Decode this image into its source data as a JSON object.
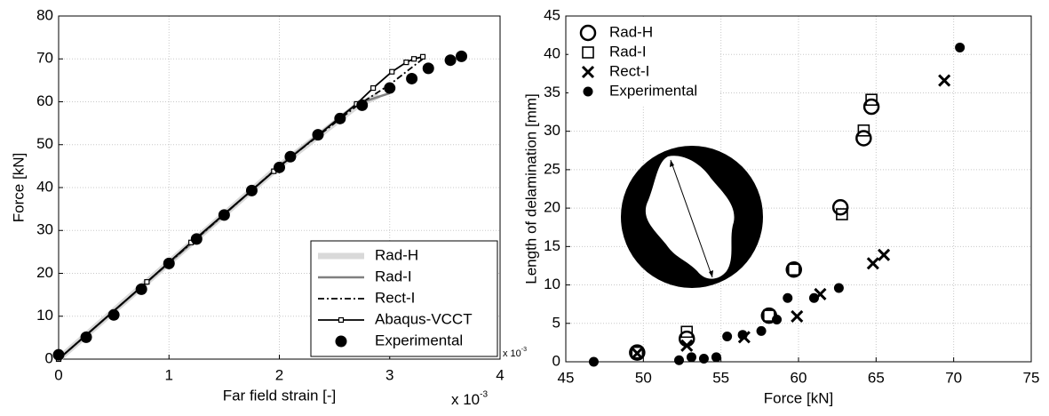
{
  "chart_data": [
    {
      "type": "line",
      "xlabel": "Far field strain [-]",
      "ylabel": "Force [kN]",
      "x_multiplier": {
        "base": "x 10",
        "power": "-3"
      },
      "xlim": [
        0,
        4
      ],
      "xticks": [
        0,
        1,
        2,
        3,
        4
      ],
      "ylim": [
        0,
        80
      ],
      "yticks": [
        0,
        10,
        20,
        30,
        40,
        50,
        60,
        70,
        80
      ],
      "grid": true,
      "legend": "lower right",
      "series": [
        {
          "name": "Rad-H",
          "color": "#d9d9d9",
          "style": "thick",
          "marker": "none",
          "x": [
            0,
            1,
            2,
            2.7,
            2.9
          ],
          "values": [
            0,
            22.5,
            45,
            59,
            61.5
          ]
        },
        {
          "name": "Rad-I",
          "color": "#808080",
          "style": "solid",
          "marker": "none",
          "x": [
            0,
            1,
            2,
            2.7,
            3.0
          ],
          "values": [
            0,
            22.4,
            45,
            59.5,
            62
          ]
        },
        {
          "name": "Rect-I",
          "color": "#000000",
          "style": "dashdot",
          "marker": "none",
          "x": [
            0,
            1,
            2,
            2.7,
            3.0,
            3.3
          ],
          "values": [
            0,
            22.5,
            45,
            59,
            64,
            70
          ]
        },
        {
          "name": "Abaqus-VCCT",
          "color": "#000000",
          "style": "solid",
          "marker": "square",
          "x": [
            0,
            0.8,
            1.2,
            1.95,
            2.7,
            2.85,
            3.02,
            3.15,
            3.22,
            3.3
          ],
          "values": [
            0,
            18,
            27.2,
            43.8,
            59.5,
            63.2,
            67,
            69.2,
            70,
            70.5
          ]
        },
        {
          "name": "Experimental",
          "color": "#000000",
          "style": "none",
          "marker": "dot",
          "x": [
            0,
            0.25,
            0.5,
            0.75,
            1,
            1.25,
            1.5,
            1.75,
            2,
            2.1,
            2.35,
            2.55,
            2.75,
            3,
            3.2,
            3.35,
            3.55,
            3.65
          ],
          "values": [
            1,
            5.1,
            10.3,
            16.3,
            22.3,
            28,
            33.6,
            39.3,
            44.7,
            47.2,
            52.3,
            56.1,
            59.2,
            63.2,
            65.4,
            67.8,
            69.7,
            70.6
          ]
        }
      ]
    },
    {
      "type": "scatter",
      "xlabel": "Force [kN]",
      "ylabel": "Length of delamination [mm]",
      "xlim": [
        45,
        75
      ],
      "xticks": [
        45,
        50,
        55,
        60,
        65,
        70,
        75
      ],
      "ylim": [
        0,
        45
      ],
      "yticks": [
        0,
        5,
        10,
        15,
        20,
        25,
        30,
        35,
        40,
        45
      ],
      "grid": true,
      "legend": "upper left",
      "series": [
        {
          "name": "Rad-H",
          "color": "#000000",
          "marker": "circle",
          "x": [
            49.6,
            52.8,
            58.1,
            59.7,
            62.7,
            64.2,
            64.7
          ],
          "values": [
            1.2,
            3.0,
            6.0,
            12.0,
            20.1,
            29.1,
            33.2
          ]
        },
        {
          "name": "Rad-I",
          "color": "#000000",
          "marker": "square",
          "x": [
            49.6,
            52.8,
            58.1,
            59.7,
            62.8,
            64.2,
            64.7
          ],
          "values": [
            1.2,
            3.9,
            6.0,
            12.0,
            19.2,
            30.1,
            34.1
          ]
        },
        {
          "name": "Rect-I",
          "color": "#000000",
          "marker": "x",
          "x": [
            49.6,
            52.8,
            56.5,
            59.9,
            61.4,
            64.8,
            65.5,
            69.4
          ],
          "values": [
            1.1,
            2.1,
            3.2,
            5.9,
            8.8,
            12.8,
            13.9,
            36.6
          ]
        },
        {
          "name": "Experimental",
          "color": "#000000",
          "marker": "dot",
          "x": [
            46.8,
            52.3,
            53.1,
            53.9,
            54.7,
            55.4,
            56.4,
            57.6,
            58.6,
            59.3,
            61.0,
            62.6,
            70.4
          ],
          "values": [
            0,
            0.2,
            0.6,
            0.4,
            0.6,
            3.3,
            3.5,
            4.0,
            5.5,
            8.3,
            8.3,
            9.6,
            40.9
          ]
        }
      ]
    }
  ]
}
